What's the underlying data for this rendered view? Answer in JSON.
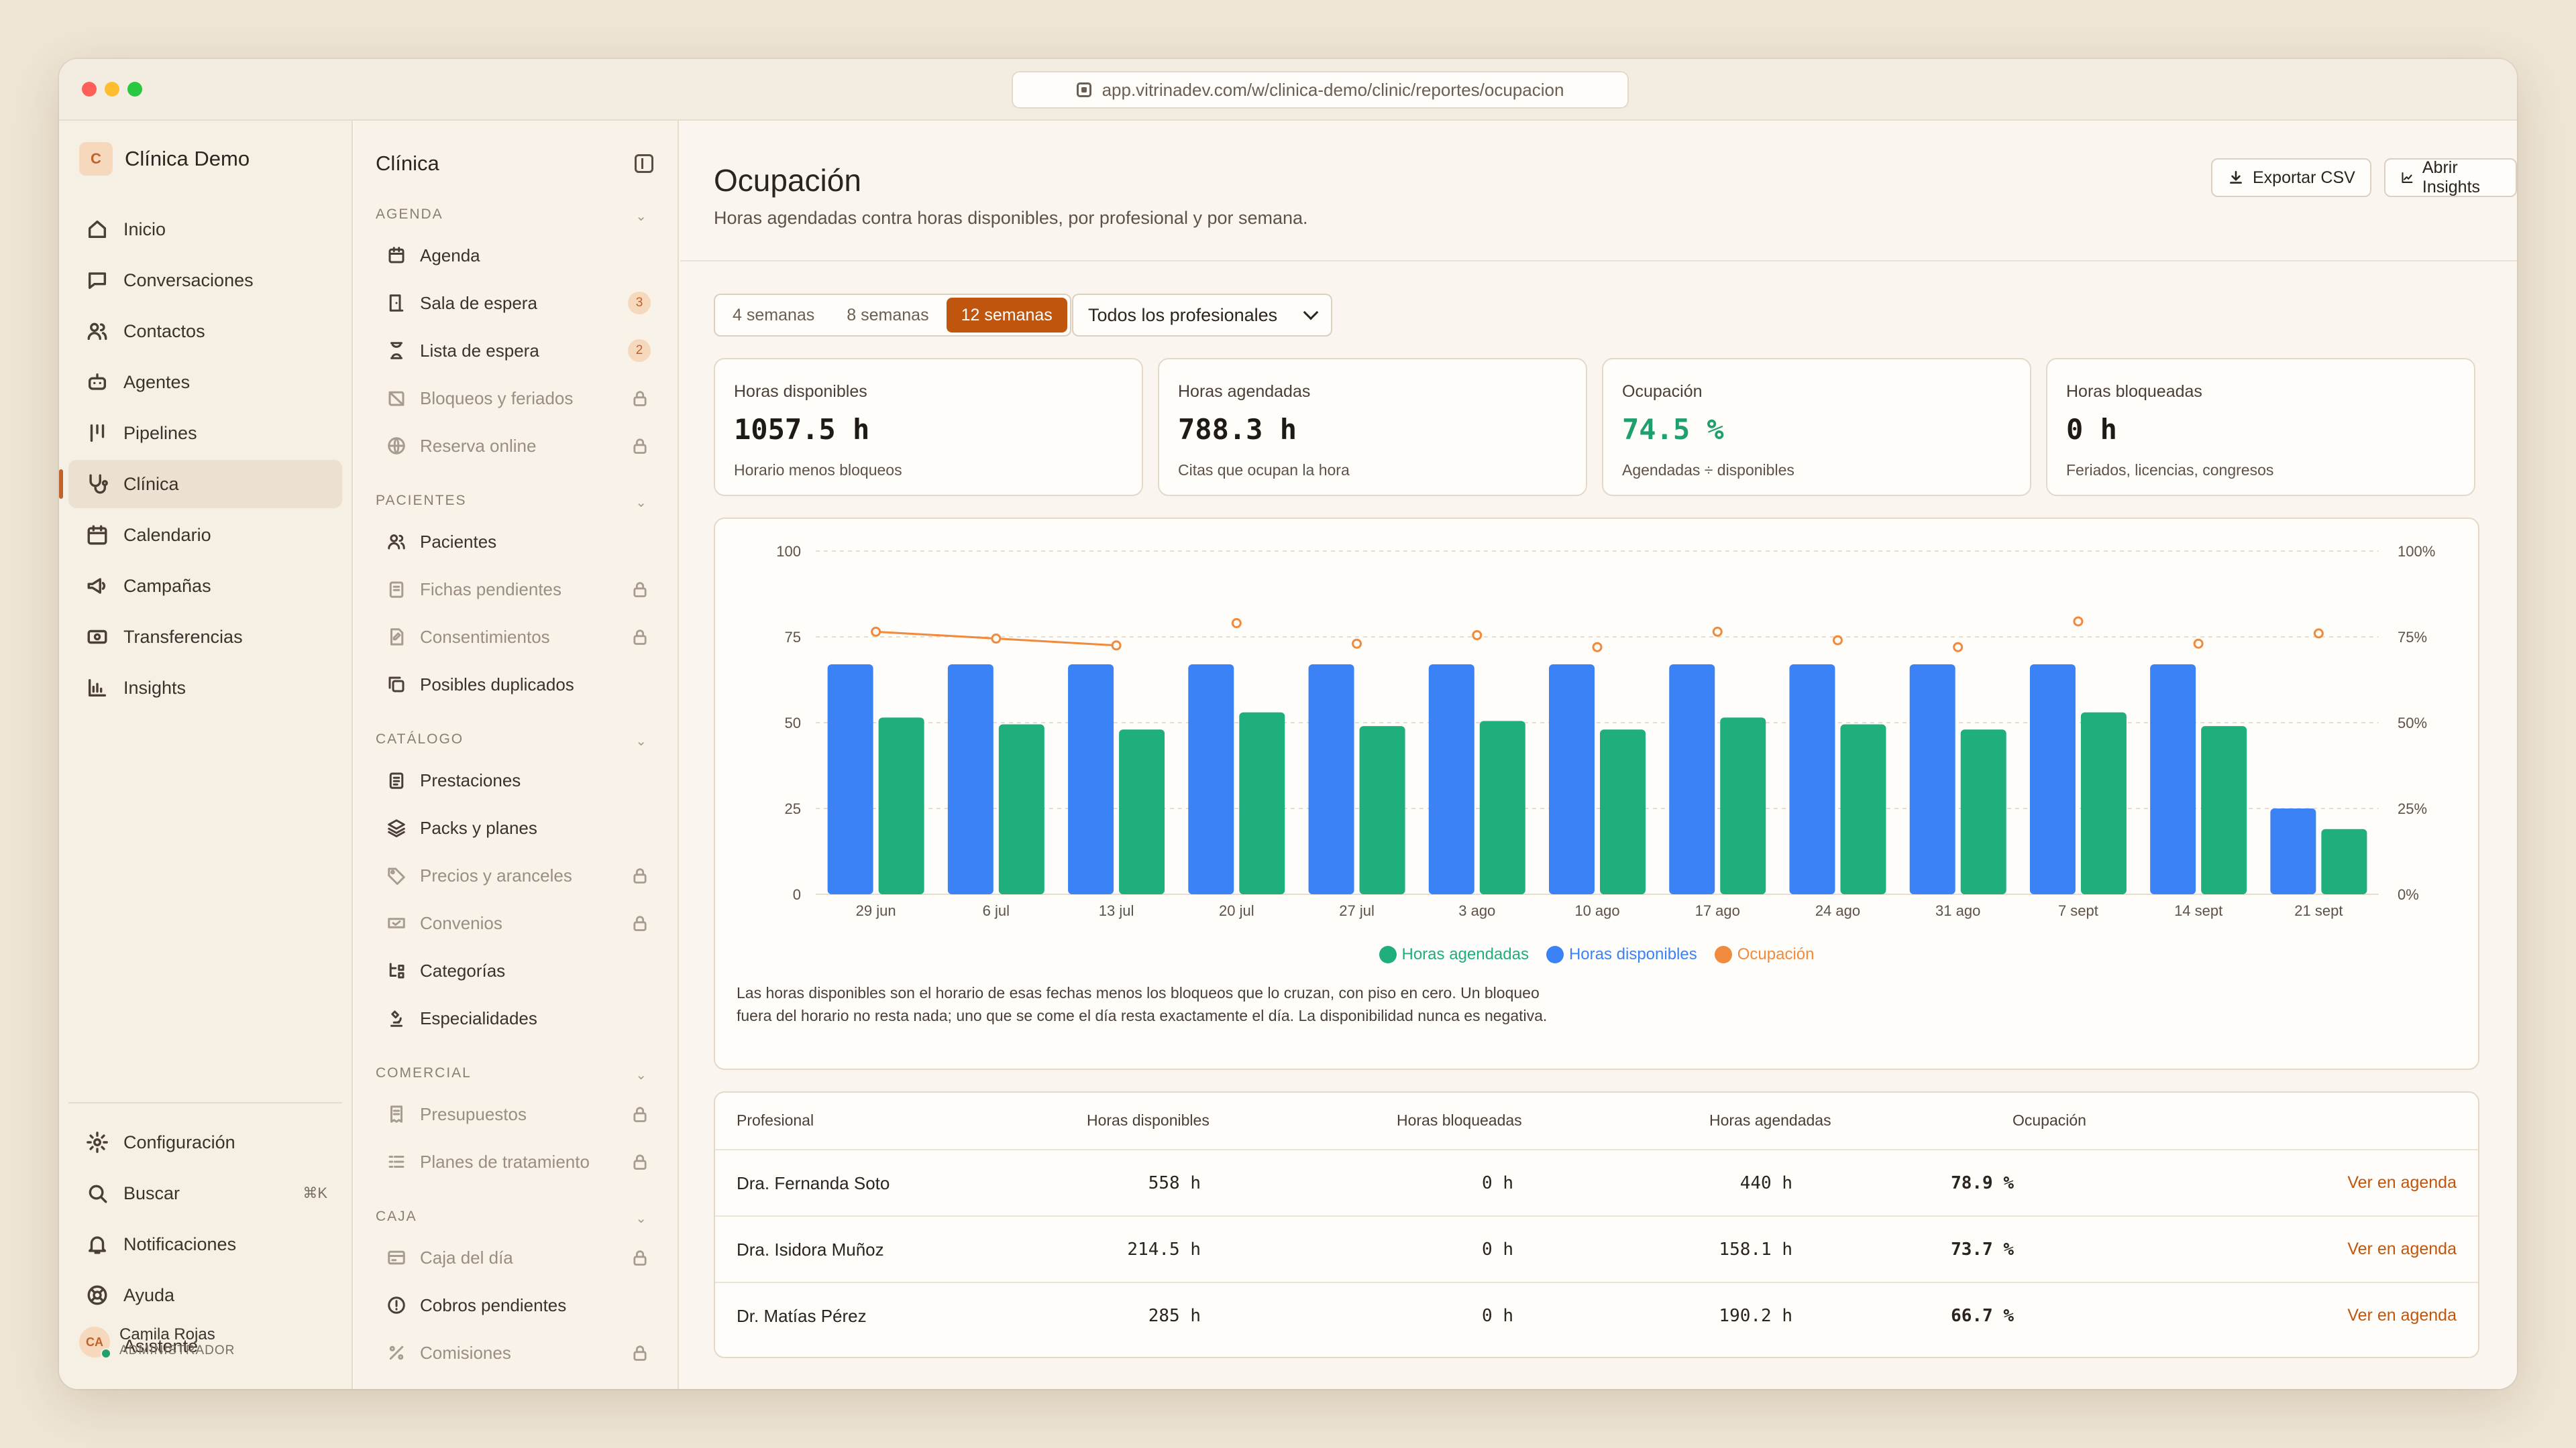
{
  "browser": {
    "url": "app.vitrinadev.com/w/clinica-demo/clinic/reportes/ocupacion"
  },
  "org": {
    "initial": "C",
    "name": "Clínica Demo"
  },
  "nav": {
    "items": [
      {
        "label": "Inicio",
        "icon": "home-icon"
      },
      {
        "label": "Conversaciones",
        "icon": "chat-icon"
      },
      {
        "label": "Contactos",
        "icon": "users-icon"
      },
      {
        "label": "Agentes",
        "icon": "bot-icon"
      },
      {
        "label": "Pipelines",
        "icon": "pipeline-icon"
      },
      {
        "label": "Clínica",
        "icon": "stethoscope-icon",
        "active": true
      },
      {
        "label": "Calendario",
        "icon": "calendar-icon"
      },
      {
        "label": "Campañas",
        "icon": "megaphone-icon"
      },
      {
        "label": "Transferencias",
        "icon": "transfer-icon"
      },
      {
        "label": "Insights",
        "icon": "bar-chart-icon"
      }
    ],
    "bottom": [
      {
        "label": "Configuración",
        "icon": "gear-icon"
      },
      {
        "label": "Buscar",
        "icon": "search-icon",
        "shortcut": "⌘K"
      },
      {
        "label": "Notificaciones",
        "icon": "bell-icon"
      },
      {
        "label": "Ayuda",
        "icon": "help-icon"
      },
      {
        "label": "Asistente",
        "icon": "sparkle-icon"
      }
    ],
    "user": {
      "initials": "CA",
      "name": "Camila Rojas",
      "role": "ADMINISTRADOR"
    }
  },
  "subnav": {
    "title": "Clínica",
    "sections": [
      {
        "label": "AGENDA",
        "items": [
          {
            "label": "Agenda"
          },
          {
            "label": "Sala de espera",
            "count": "3"
          },
          {
            "label": "Lista de espera",
            "count": "2"
          },
          {
            "label": "Bloqueos y feriados",
            "locked": true
          },
          {
            "label": "Reserva online",
            "locked": true
          }
        ]
      },
      {
        "label": "PACIENTES",
        "items": [
          {
            "label": "Pacientes"
          },
          {
            "label": "Fichas pendientes",
            "locked": true
          },
          {
            "label": "Consentimientos",
            "locked": true
          },
          {
            "label": "Posibles duplicados"
          }
        ]
      },
      {
        "label": "CATÁLOGO",
        "items": [
          {
            "label": "Prestaciones"
          },
          {
            "label": "Packs y planes"
          },
          {
            "label": "Precios y aranceles",
            "locked": true
          },
          {
            "label": "Convenios",
            "locked": true
          },
          {
            "label": "Categorías"
          },
          {
            "label": "Especialidades"
          }
        ]
      },
      {
        "label": "COMERCIAL",
        "items": [
          {
            "label": "Presupuestos",
            "locked": true
          },
          {
            "label": "Planes de tratamiento",
            "locked": true
          }
        ]
      },
      {
        "label": "CAJA",
        "items": [
          {
            "label": "Caja del día",
            "locked": true
          },
          {
            "label": "Cobros pendientes"
          },
          {
            "label": "Comisiones",
            "locked": true
          }
        ]
      }
    ]
  },
  "page": {
    "title": "Ocupación",
    "subtitle": "Horas agendadas contra horas disponibles, por profesional y por semana.",
    "export_label": "Exportar CSV",
    "insights_label": "Abrir Insights",
    "ranges": [
      "4 semanas",
      "8 semanas",
      "12 semanas"
    ],
    "selected_range": "12 semanas",
    "professional_filter": "Todos los profesionales"
  },
  "kpis": [
    {
      "label": "Horas disponibles",
      "value": "1057.5 h",
      "sub": "Horario menos bloqueos"
    },
    {
      "label": "Horas agendadas",
      "value": "788.3 h",
      "sub": "Citas que ocupan la hora"
    },
    {
      "label": "Ocupación",
      "value": "74.5 %",
      "sub": "Agendadas ÷ disponibles"
    },
    {
      "label": "Horas bloqueadas",
      "value": "0 h",
      "sub": "Feriados, licencias, congresos"
    }
  ],
  "colors": {
    "agendadas": "#1faf7c",
    "disponibles": "#3b82f6",
    "ocupacion": "#f08a3c",
    "accent": "#c0560e"
  },
  "chart_data": {
    "type": "bar",
    "categories": [
      "29 jun",
      "6 jul",
      "13 jul",
      "20 jul",
      "27 jul",
      "3 ago",
      "10 ago",
      "17 ago",
      "24 ago",
      "31 ago",
      "7 sept",
      "14 sept",
      "21 sept"
    ],
    "series": [
      {
        "name": "Horas disponibles",
        "values": [
          67,
          67,
          67,
          67,
          67,
          67,
          67,
          67,
          67,
          67,
          67,
          67,
          25
        ]
      },
      {
        "name": "Horas agendadas",
        "values": [
          51.5,
          49.5,
          48,
          53,
          49,
          50.5,
          48,
          51.5,
          49.5,
          48,
          53,
          49,
          19
        ]
      },
      {
        "name": "Ocupación",
        "values": [
          76.5,
          74.5,
          72.5,
          79,
          73,
          75.5,
          72,
          76.5,
          74,
          72,
          79.5,
          73,
          76
        ]
      }
    ],
    "ylim": [
      0,
      100
    ],
    "y_ticks": [
      "0",
      "25",
      "50",
      "75",
      "100"
    ],
    "y2lim": [
      0,
      100
    ],
    "y2_ticks": [
      "0%",
      "25%",
      "50%",
      "75%",
      "100%"
    ],
    "legend": "bottom-center"
  },
  "chart_note": "Las horas disponibles son el horario de esas fechas menos los bloqueos que lo cruzan, con piso en cero. Un bloqueo fuera del horario no resta nada; uno que se come el día resta exactamente el día. La disponibilidad nunca es negativa.",
  "table": {
    "headers": [
      "Profesional",
      "Horas disponibles",
      "Horas bloqueadas",
      "Horas agendadas",
      "Ocupación"
    ],
    "rows": [
      {
        "name": "Dra. Fernanda Soto",
        "disp": "558 h",
        "bloq": "0 h",
        "agend": "440 h",
        "ocup": "78.9 %",
        "action": "Ver en agenda"
      },
      {
        "name": "Dra. Isidora Muñoz",
        "disp": "214.5 h",
        "bloq": "0 h",
        "agend": "158.1 h",
        "ocup": "73.7 %",
        "action": "Ver en agenda"
      },
      {
        "name": "Dr. Matías Pérez",
        "disp": "285 h",
        "bloq": "0 h",
        "agend": "190.2 h",
        "ocup": "66.7 %",
        "action": "Ver en agenda"
      }
    ]
  }
}
